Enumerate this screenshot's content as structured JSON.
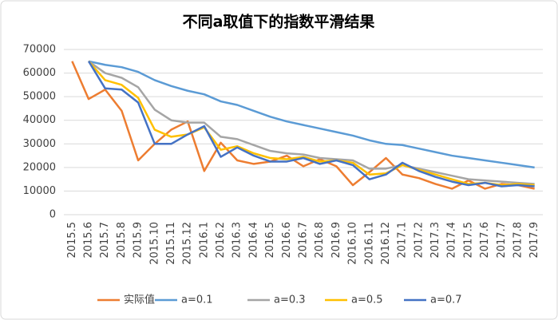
{
  "chart_data": {
    "type": "line",
    "title": "不同a取值下的指数平滑结果",
    "categories": [
      "2015.5",
      "2015.6",
      "2015.7",
      "2015.8",
      "2015.9",
      "2015.10",
      "2015.11",
      "2015.12",
      "2016.1",
      "2016.2",
      "2016.3",
      "2016.4",
      "2016.5",
      "2016.6",
      "2016.7",
      "2016.8",
      "2016.9",
      "2016.10",
      "2016.11",
      "2016.12",
      "2017.1",
      "2017.2",
      "2017.3",
      "2017.4",
      "2017.5",
      "2017.6",
      "2017.7",
      "2017.8",
      "2017.9"
    ],
    "series": [
      {
        "name": "实际值",
        "color": "#ed7d31",
        "values": [
          65000,
          49000,
          53000,
          44000,
          23000,
          30000,
          36000,
          39500,
          18500,
          30500,
          23000,
          21500,
          22500,
          25000,
          20500,
          23500,
          20500,
          12500,
          18000,
          24000,
          17000,
          15500,
          13000,
          11000,
          14500,
          11000,
          13000,
          12500,
          11000
        ]
      },
      {
        "name": "a=0.1",
        "color": "#5b9bd5",
        "values": [
          null,
          65000,
          63500,
          62500,
          60500,
          57000,
          54500,
          52500,
          51000,
          48000,
          46500,
          44000,
          41500,
          39500,
          38000,
          36500,
          35000,
          33500,
          31500,
          30000,
          29500,
          28000,
          26500,
          25000,
          24000,
          23000,
          22000,
          21000,
          20000
        ]
      },
      {
        "name": "a=0.3",
        "color": "#a5a5a5",
        "values": [
          null,
          65000,
          60000,
          58000,
          54000,
          44500,
          40000,
          39000,
          39000,
          33000,
          32000,
          29500,
          27000,
          26000,
          25500,
          24000,
          23500,
          23000,
          19500,
          19500,
          21000,
          19500,
          18000,
          16500,
          15000,
          14500,
          14000,
          13500,
          13000
        ]
      },
      {
        "name": "a=0.5",
        "color": "#ffc000",
        "values": [
          null,
          65000,
          57000,
          55000,
          49500,
          36000,
          33000,
          34000,
          37000,
          27500,
          29000,
          26000,
          24000,
          23500,
          24500,
          22500,
          23000,
          22000,
          17000,
          17500,
          21000,
          19000,
          17000,
          15000,
          13000,
          13500,
          12500,
          13000,
          12500
        ]
      },
      {
        "name": "a=0.7",
        "color": "#4472c4",
        "values": [
          null,
          65000,
          53500,
          53000,
          47500,
          30000,
          30000,
          34000,
          37500,
          24500,
          28500,
          25000,
          22500,
          22500,
          24000,
          21500,
          23000,
          21000,
          15000,
          17000,
          22000,
          18500,
          16000,
          14000,
          12500,
          13500,
          12000,
          12500,
          12000
        ]
      }
    ],
    "ylim": [
      0,
      70000
    ],
    "yticks": [
      0,
      10000,
      20000,
      30000,
      40000,
      50000,
      60000,
      70000
    ],
    "grid": true,
    "legend": "bottom"
  }
}
